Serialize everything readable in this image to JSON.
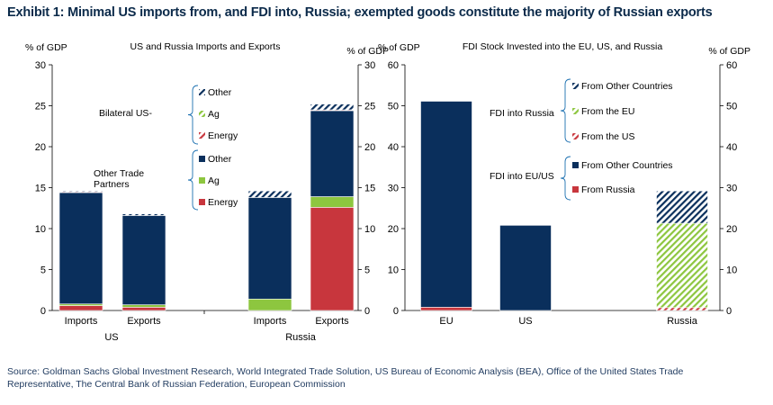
{
  "title": "Exhibit 1: Minimal US imports from, and FDI into, Russia; exempted goods constitute the majority of Russian exports",
  "source": "Source: Goldman Sachs Global Investment Research, World Integrated Trade Solution, US Bureau of Economic Analysis (BEA), Office of the United States Trade Representative, The Central Bank of Russian Federation, European Commission",
  "colors": {
    "navy": "#0a2f5c",
    "green": "#8dc63f",
    "red": "#c8363d",
    "axis": "#000000"
  },
  "chart_data": [
    {
      "type": "bar",
      "stacked": true,
      "title": "US and Russia Imports and Exports",
      "ylabel_left": "% of GDP",
      "ylabel_right": "% of GDP",
      "ylim": [
        0,
        30
      ],
      "yticks": [
        0,
        5,
        10,
        15,
        20,
        25,
        30
      ],
      "categories": [
        "Imports",
        "Exports",
        "Imports",
        "Exports"
      ],
      "groups": [
        "US",
        "Russia"
      ],
      "series": [
        {
          "name": "Energy",
          "group": "Other Trade Partners",
          "pattern": "solid",
          "color": "#c8363d",
          "values": [
            0.6,
            0.4,
            0.0,
            12.6
          ]
        },
        {
          "name": "Ag",
          "group": "Other Trade Partners",
          "pattern": "solid",
          "color": "#8dc63f",
          "values": [
            0.2,
            0.3,
            1.4,
            1.3
          ]
        },
        {
          "name": "Other",
          "group": "Other Trade Partners",
          "pattern": "solid",
          "color": "#0a2f5c",
          "values": [
            13.6,
            10.9,
            12.4,
            10.5
          ]
        },
        {
          "name": "Energy",
          "group": "Bilateral US-",
          "pattern": "hatched",
          "color": "#c8363d",
          "values": [
            0.1,
            0.0,
            0.0,
            0.1
          ]
        },
        {
          "name": "Ag",
          "group": "Bilateral US-",
          "pattern": "hatched",
          "color": "#8dc63f",
          "values": [
            0.0,
            0.0,
            0.0,
            0.0
          ]
        },
        {
          "name": "Other",
          "group": "Bilateral US-",
          "pattern": "hatched",
          "color": "#0a2f5c",
          "values": [
            0.1,
            0.2,
            0.8,
            0.7
          ]
        }
      ],
      "legend": {
        "bilateral_label": "Bilateral US-",
        "other_label": "Other Trade Partners",
        "bilateral_items": [
          "Other",
          "Ag",
          "Energy"
        ],
        "other_items": [
          "Other",
          "Ag",
          "Energy"
        ]
      }
    },
    {
      "type": "bar",
      "stacked": true,
      "title": "FDI Stock Invested into the EU, US, and Russia",
      "ylabel_left": "% of GDP",
      "ylabel_right": "% of GDP",
      "ylim": [
        0,
        60
      ],
      "yticks": [
        0,
        10,
        20,
        30,
        40,
        50,
        60
      ],
      "categories": [
        "EU",
        "US",
        "Russia"
      ],
      "series": [
        {
          "name": "From Russia",
          "group": "FDI into EU/US",
          "pattern": "solid",
          "color": "#c8363d",
          "values": [
            0.8,
            0.0,
            0.0
          ]
        },
        {
          "name": "From Other Countries",
          "group": "FDI into EU/US",
          "pattern": "solid",
          "color": "#0a2f5c",
          "values": [
            50.3,
            20.8,
            0.0
          ]
        },
        {
          "name": "From the US",
          "group": "FDI into Russia",
          "pattern": "hatched",
          "color": "#c8363d",
          "values": [
            0.0,
            0.0,
            0.7
          ]
        },
        {
          "name": "From the EU",
          "group": "FDI into Russia",
          "pattern": "hatched",
          "color": "#8dc63f",
          "values": [
            0.0,
            0.0,
            20.6
          ]
        },
        {
          "name": "From Other Countries",
          "group": "FDI into Russia",
          "pattern": "hatched",
          "color": "#0a2f5c",
          "values": [
            0.0,
            0.0,
            7.9
          ]
        }
      ],
      "legend": {
        "russia_label": "FDI into Russia",
        "euus_label": "FDI into EU/US",
        "russia_items": [
          "From Other Countries",
          "From the EU",
          "From the US"
        ],
        "euus_items": [
          "From Other Countries",
          "From Russia"
        ]
      }
    }
  ]
}
